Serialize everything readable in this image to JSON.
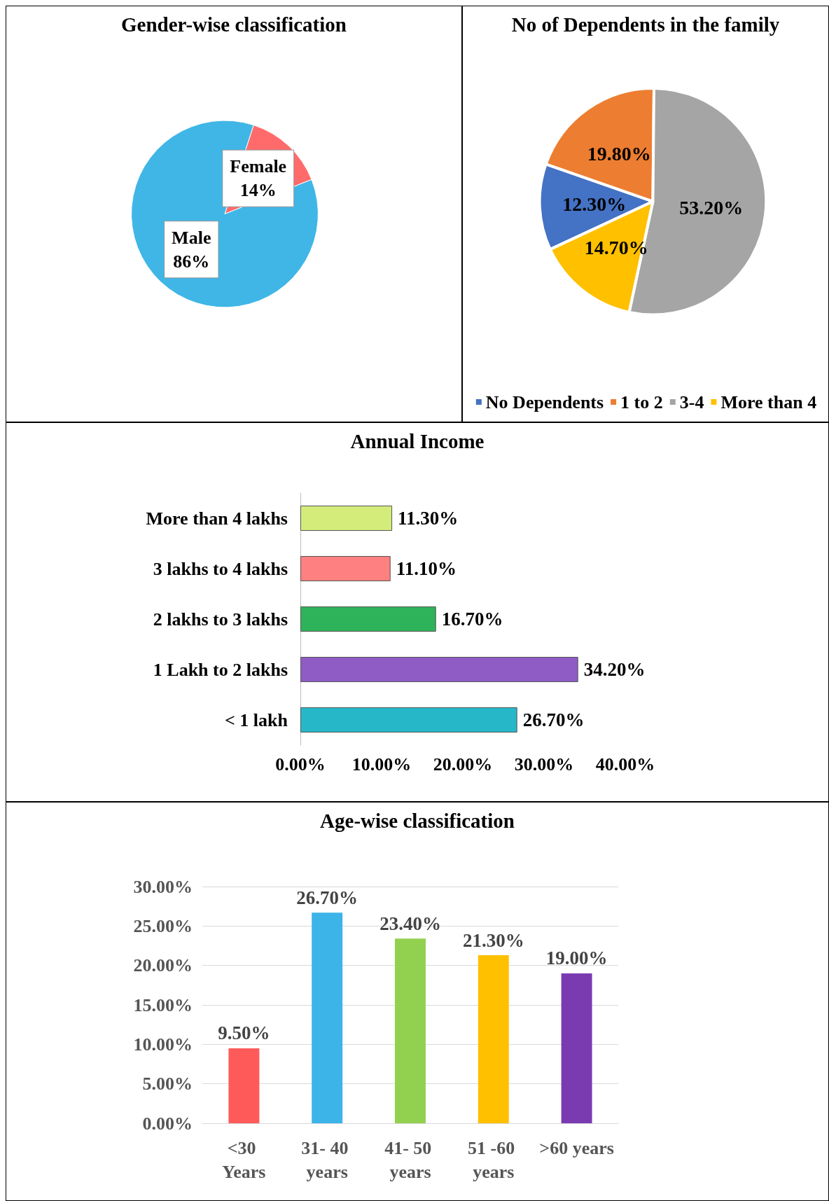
{
  "chart_data": [
    {
      "type": "pie",
      "title": "Gender-wise classification",
      "categories": [
        "Female",
        "Male"
      ],
      "values": [
        14,
        86
      ],
      "colors": [
        "#ff6b6b",
        "#3fb6e6"
      ],
      "value_labels": [
        "14%",
        "86%"
      ],
      "legend": false
    },
    {
      "type": "pie",
      "title": "No of Dependents in the family",
      "categories": [
        "No Dependents",
        "1 to 2",
        "3-4",
        "More than 4"
      ],
      "values": [
        12.3,
        19.8,
        53.2,
        14.7
      ],
      "colors": [
        "#4472c4",
        "#ed7d31",
        "#a5a5a5",
        "#ffc000"
      ],
      "value_labels": [
        "12.30%",
        "19.80%",
        "53.20%",
        "14.70%"
      ],
      "legend": "bottom"
    },
    {
      "type": "bar",
      "orientation": "horizontal",
      "title": "Annual Income",
      "categories": [
        "More than 4 lakhs",
        "3 lakhs to 4 lakhs",
        "2 lakhs to 3 lakhs",
        "1 Lakh to 2 lakhs",
        "< 1 lakh"
      ],
      "values": [
        11.3,
        11.1,
        16.7,
        34.2,
        26.7
      ],
      "colors": [
        "#d4ec7a",
        "#ff8080",
        "#2fb35a",
        "#8e5cc4",
        "#26b8c8"
      ],
      "value_labels": [
        "11.30%",
        "11.10%",
        "16.70%",
        "34.20%",
        "26.70%"
      ],
      "xlim": [
        0,
        40
      ],
      "xticks": [
        {
          "value": 0,
          "label": "0.00%"
        },
        {
          "value": 10,
          "label": "10.00%"
        },
        {
          "value": 20,
          "label": "20.00%"
        },
        {
          "value": 30,
          "label": "30.00%"
        },
        {
          "value": 40,
          "label": "40.00%"
        }
      ],
      "grid": false
    },
    {
      "type": "bar",
      "title": "Age-wise classification",
      "categories": [
        "<30 Years",
        "31- 40 years",
        "41- 50 years",
        "51 -60 years",
        ">60 years"
      ],
      "values": [
        9.5,
        26.7,
        23.4,
        21.3,
        19.0
      ],
      "colors": [
        "#ff5a5a",
        "#3cb4e8",
        "#92d050",
        "#ffc000",
        "#7a3bb0"
      ],
      "value_labels": [
        "9.50%",
        "26.70%",
        "23.40%",
        "21.30%",
        "19.00%"
      ],
      "ylim": [
        0,
        30
      ],
      "yticks": [
        {
          "value": 0,
          "label": "0.00%"
        },
        {
          "value": 5,
          "label": "5.00%"
        },
        {
          "value": 10,
          "label": "10.00%"
        },
        {
          "value": 15,
          "label": "15.00%"
        },
        {
          "value": 20,
          "label": "20.00%"
        },
        {
          "value": 25,
          "label": "25.00%"
        },
        {
          "value": 30,
          "label": "30.00%"
        }
      ],
      "grid": "y"
    }
  ]
}
